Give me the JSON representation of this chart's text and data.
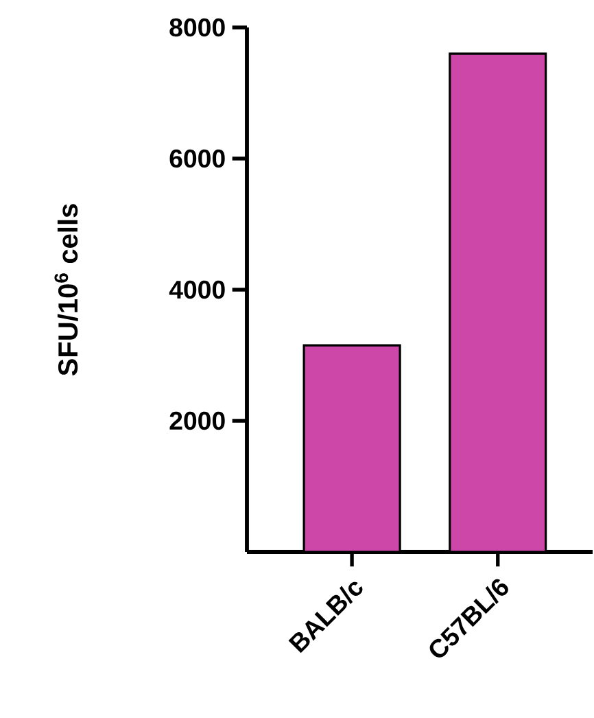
{
  "chart_data": {
    "type": "bar",
    "ylabel": "SFU/10$^{6}$ cells",
    "categories": [
      "BALB/c",
      "C57BL/6"
    ],
    "values": [
      3150,
      7600
    ],
    "color": "#cc47a8",
    "ylim": [
      0,
      8000
    ],
    "yticks": [
      2000,
      4000,
      6000,
      8000
    ],
    "grid": false
  }
}
